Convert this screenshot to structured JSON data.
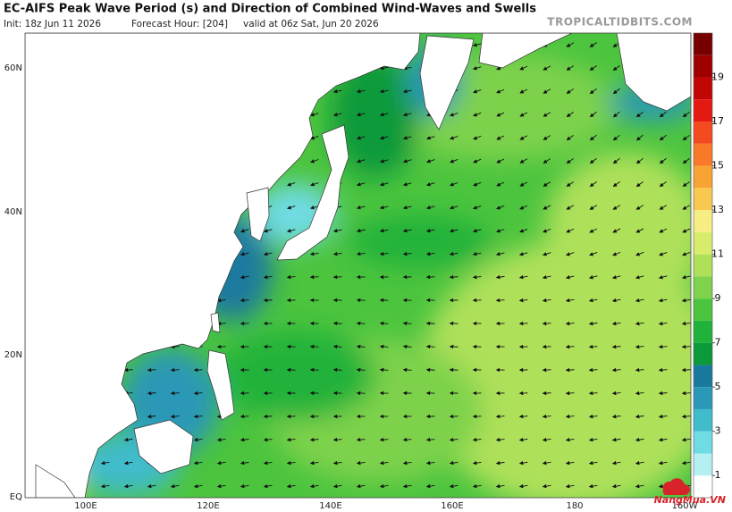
{
  "header": {
    "title": "EC-AIFS Peak Wave Period (s) and Direction of Combined Wind-Waves and Swells",
    "init": "Init: 18z Jun 11 2026",
    "forecast_hour": "Forecast Hour: [204]",
    "valid": "valid at 06z Sat, Jun 20 2026",
    "site": "TROPICALTIDBITS.COM"
  },
  "map": {
    "lat_labels": [
      "60N",
      "40N",
      "20N",
      "EQ"
    ],
    "lon_labels": [
      "100E",
      "120E",
      "140E",
      "160E",
      "180",
      "160W"
    ]
  },
  "colorbar": {
    "range": [
      0,
      21
    ],
    "ticks": [
      1,
      3,
      5,
      7,
      9,
      11,
      13,
      15,
      17,
      19
    ],
    "colors": [
      "#ffffff",
      "#b4f0f2",
      "#6fdbe2",
      "#40bccb",
      "#2a98b6",
      "#1a7a9e",
      "#0b9a3a",
      "#20b23a",
      "#4cc43e",
      "#7ed24c",
      "#aee05a",
      "#d8ec6c",
      "#f6ee82",
      "#f8c850",
      "#f8a434",
      "#f87a28",
      "#f44a20",
      "#e41a12",
      "#c20606",
      "#9e0000",
      "#760000"
    ]
  },
  "watermark": "NangMua.VN"
}
